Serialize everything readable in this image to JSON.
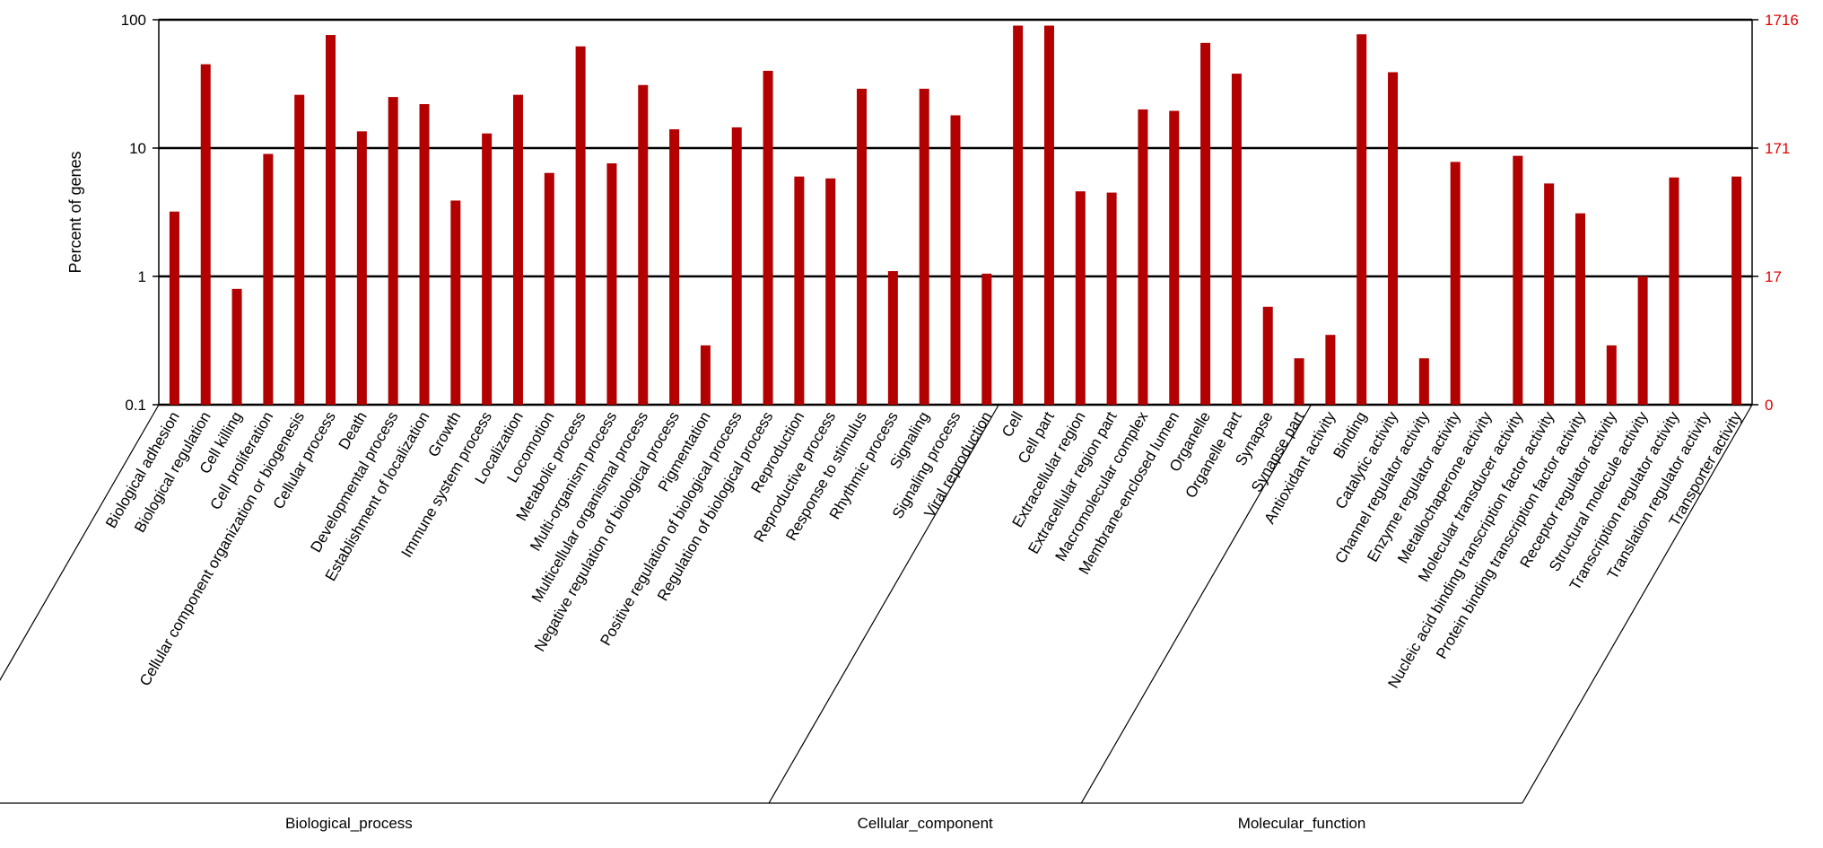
{
  "chart_data": {
    "type": "bar",
    "yscale": "log",
    "ylim": [
      0.1,
      100
    ],
    "ylabel": "Percent of genes",
    "y_ticks": [
      "100",
      "10",
      "1",
      "0.1"
    ],
    "y2_ticks": [
      "1716",
      "171",
      "17",
      "0"
    ],
    "grid": true,
    "bar_color": "#b30000",
    "y2_color": "#e00000",
    "categories": [
      "Biological adhesion",
      "Biological regulation",
      "Cell killing",
      "Cell proliferation",
      "Cellular component organization or biogenesis",
      "Cellular process",
      "Death",
      "Developmental process",
      "Establishment of localization",
      "Growth",
      "Immune system process",
      "Localization",
      "Locomotion",
      "Metabolic process",
      "Multi-organism process",
      "Multicellular organismal process",
      "Negative regulation of biological process",
      "Pigmentation",
      "Positive regulation of biological process",
      "Regulation of biological process",
      "Reproduction",
      "Reproductive process",
      "Response to stimulus",
      "Rhythmic process",
      "Signaling",
      "Signaling process",
      "Viral reproduction",
      "Cell",
      "Cell part",
      "Extracellular region",
      "Extracellular region part",
      "Macromolecular complex",
      "Membrane-enclosed lumen",
      "Organelle",
      "Organelle part",
      "Synapse",
      "Synapse part",
      "Antioxidant activity",
      "Binding",
      "Catalytic activity",
      "Channel regulator activity",
      "Enzyme regulator activity",
      "Metallochaperone activity",
      "Molecular transducer activity",
      "Nucleic acid binding transcription factor activity",
      "Protein binding transcription factor activity",
      "Receptor regulator activity",
      "Structural molecule activity",
      "Transcription regulator activity",
      "Translation regulator activity",
      "Transporter activity"
    ],
    "values": [
      3.2,
      45,
      0.8,
      9,
      26,
      76,
      13.5,
      25,
      22,
      3.9,
      13,
      26,
      6.4,
      62,
      7.6,
      31,
      14,
      0.29,
      14.5,
      40,
      6,
      5.8,
      29,
      1.1,
      29,
      18,
      1.05,
      90,
      90,
      4.6,
      4.5,
      20,
      19.5,
      66,
      38,
      0.58,
      0.23,
      0.35,
      77,
      39,
      0.23,
      7.8,
      null,
      8.7,
      5.3,
      3.1,
      0.29,
      1.0,
      5.9,
      null,
      6
    ],
    "groups": [
      {
        "name": "Biological_process",
        "start": 0,
        "end": 26
      },
      {
        "name": "Cellular_component",
        "start": 27,
        "end": 36
      },
      {
        "name": "Molecular_function",
        "start": 37,
        "end": 50
      }
    ]
  }
}
